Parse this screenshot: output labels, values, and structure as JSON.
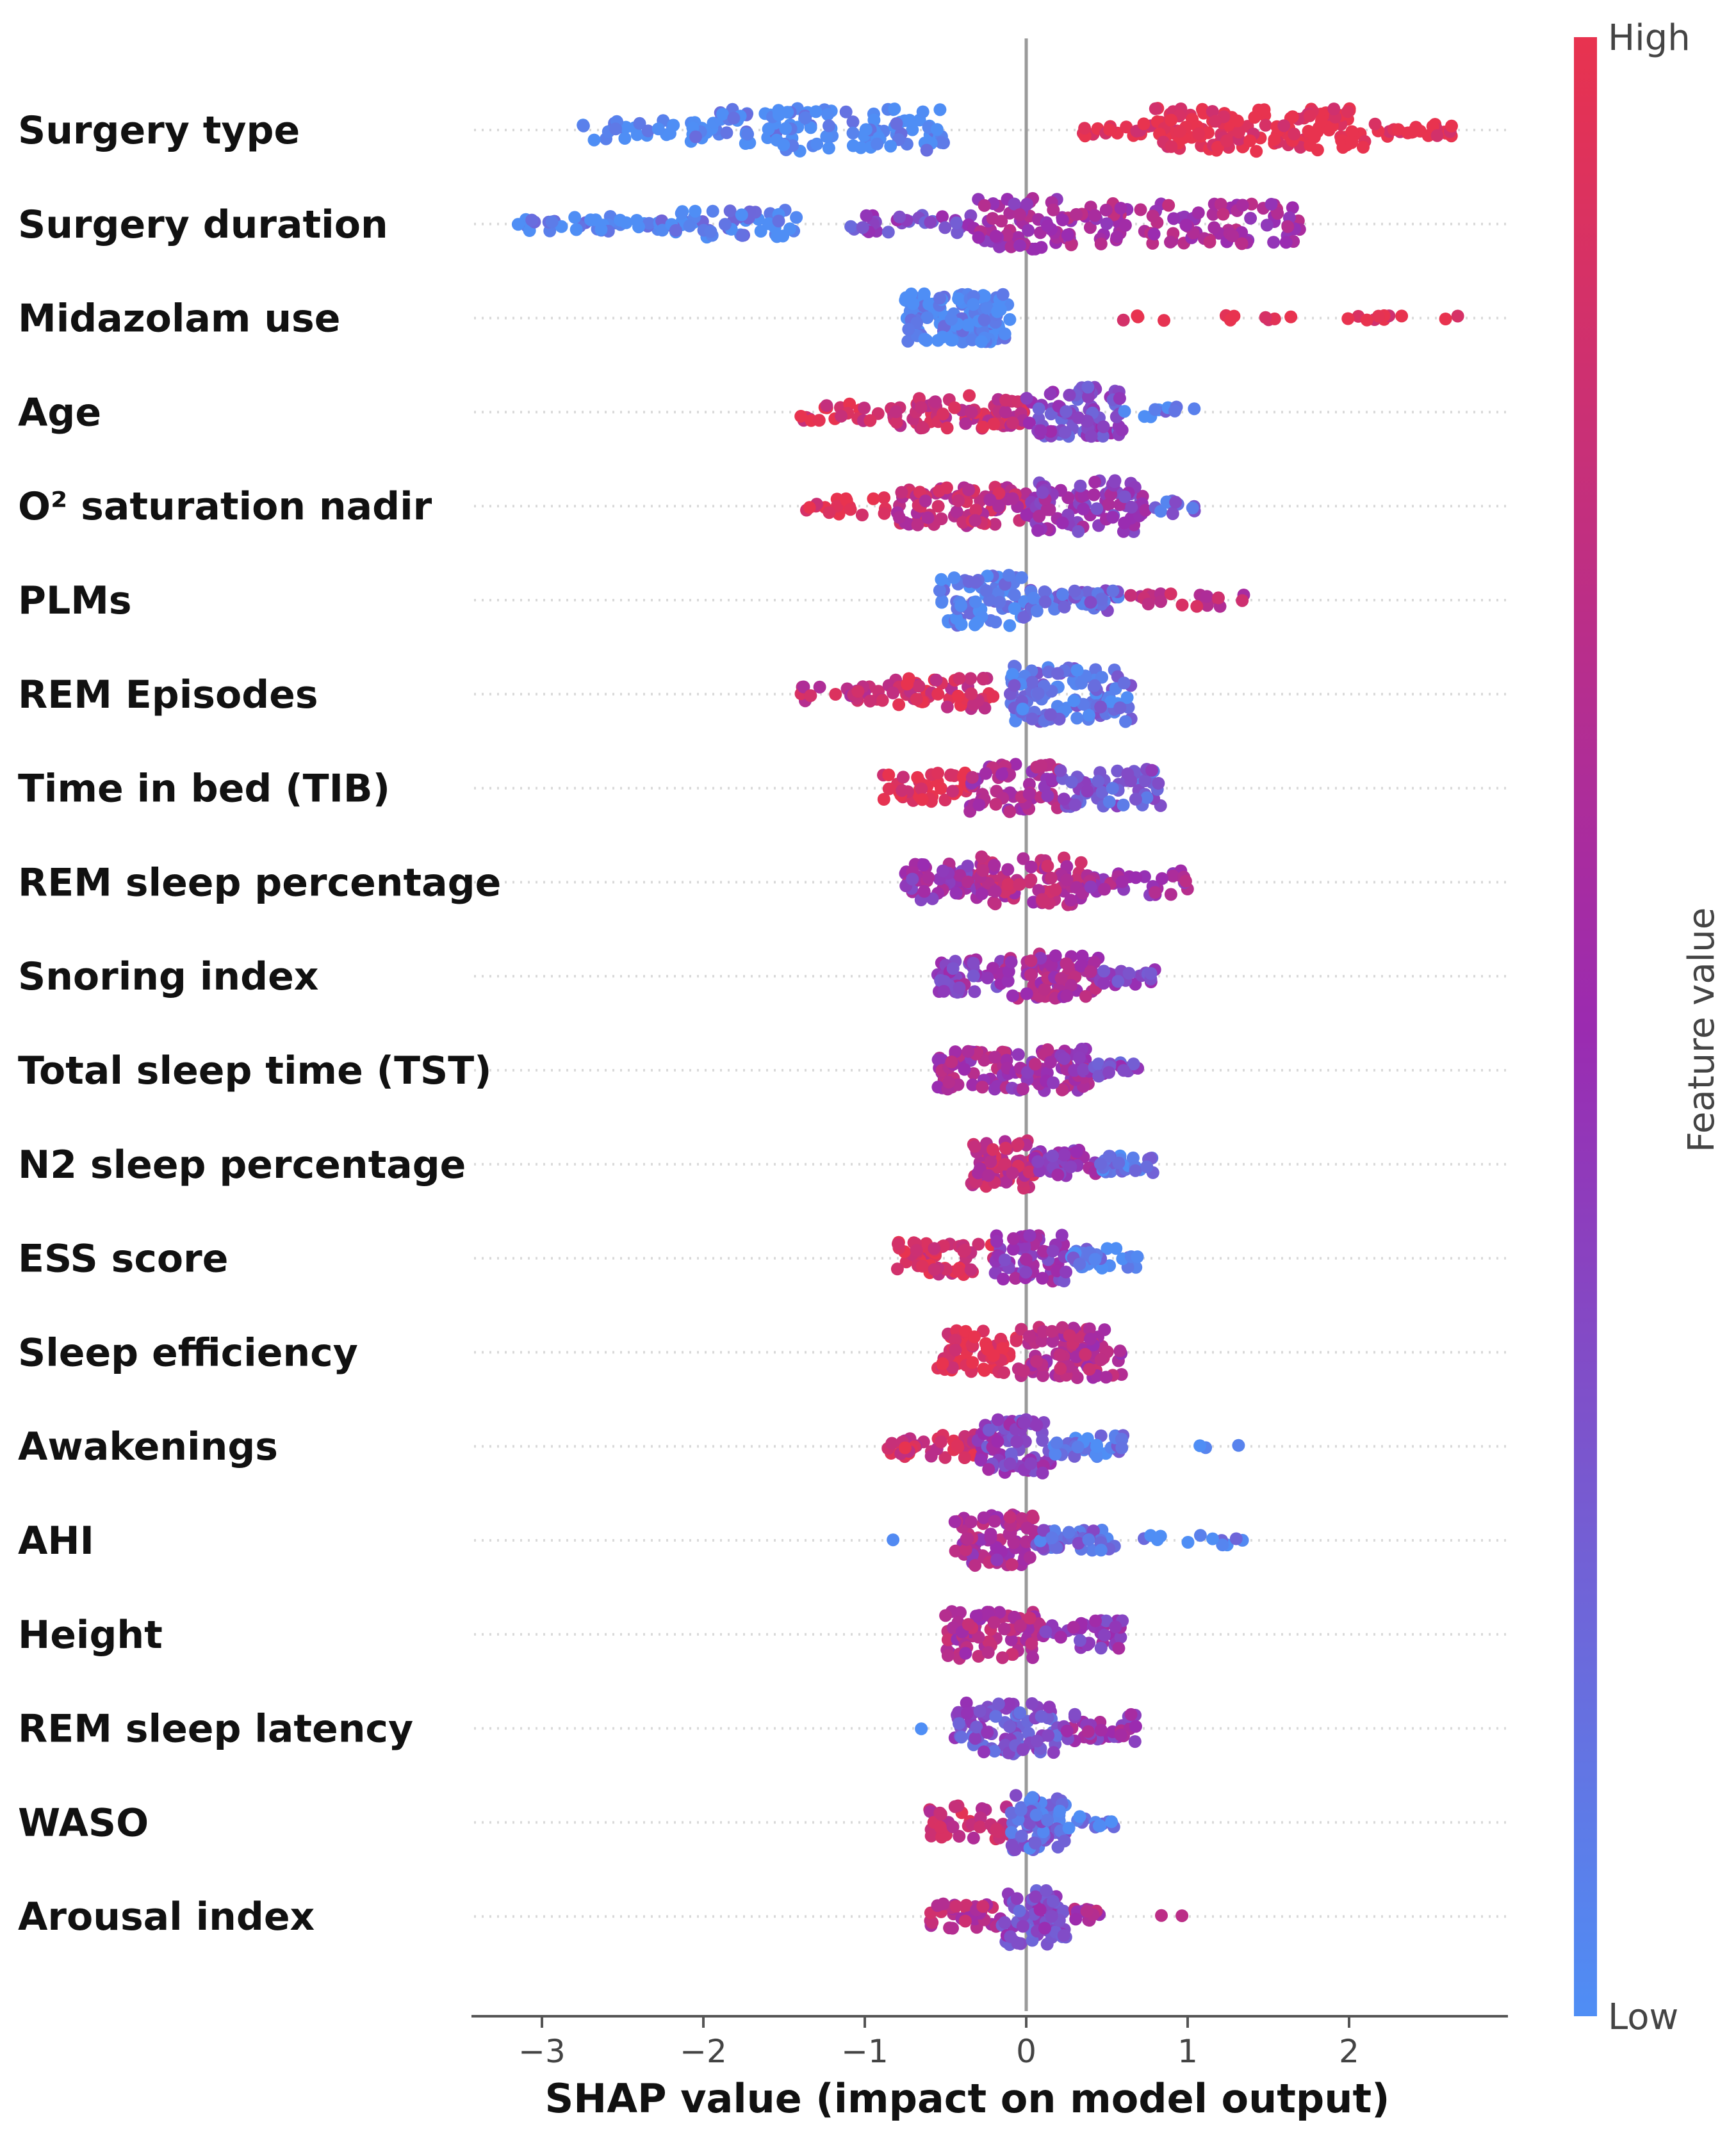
{
  "chart_data": {
    "type": "scatter",
    "subtype": "shap-beeswarm-summary",
    "title": "",
    "xlabel": "SHAP value (impact on model output)",
    "xlim": [
      -3.5,
      3.0
    ],
    "xticks": [
      -3,
      -2,
      -1,
      0,
      1,
      2
    ],
    "xtick_labels": [
      "−3",
      "−2",
      "−1",
      "0",
      "1",
      "2"
    ],
    "colorbar": {
      "label": "Feature value",
      "high_label": "High",
      "low_label": "Low",
      "high_color": "#e8334f",
      "mid_color": "#9b2bb0",
      "low_color": "#4f8ef5"
    },
    "features": [
      {
        "name": "Surgery type",
        "segments": [
          [
            -2.75,
            -1.9,
            0.0,
            40,
            18
          ],
          [
            -1.9,
            -0.5,
            0.0,
            110,
            34
          ],
          [
            0.35,
            0.8,
            1.0,
            18,
            10
          ],
          [
            0.8,
            2.1,
            1.0,
            130,
            34
          ],
          [
            2.1,
            2.65,
            1.0,
            22,
            10
          ]
        ]
      },
      {
        "name": "Surgery duration",
        "segments": [
          [
            -3.15,
            -2.2,
            0.05,
            40,
            12
          ],
          [
            -2.2,
            -1.4,
            0.05,
            55,
            22
          ],
          [
            -1.1,
            -0.3,
            0.35,
            30,
            14
          ],
          [
            -0.3,
            0.4,
            0.55,
            70,
            40
          ],
          [
            0.4,
            1.7,
            0.6,
            90,
            32
          ]
        ]
      },
      {
        "name": "Midazolam use",
        "segments": [
          [
            -0.75,
            -0.1,
            0.0,
            140,
            38
          ],
          [
            0.5,
            2.7,
            1.0,
            22,
            4
          ]
        ]
      },
      {
        "name": "Age",
        "segments": [
          [
            -1.4,
            -0.9,
            0.9,
            20,
            14
          ],
          [
            -0.9,
            0.0,
            0.8,
            75,
            26
          ],
          [
            0.0,
            0.6,
            0.35,
            80,
            40
          ],
          [
            0.6,
            1.05,
            0.1,
            10,
            8
          ]
        ]
      },
      {
        "name": "O² saturation nadir",
        "segments": [
          [
            -1.4,
            -0.8,
            0.95,
            20,
            14
          ],
          [
            -0.8,
            0.0,
            0.75,
            90,
            32
          ],
          [
            0.0,
            0.75,
            0.45,
            90,
            40
          ],
          [
            0.75,
            1.05,
            0.2,
            12,
            12
          ]
        ]
      },
      {
        "name": "PLMs",
        "segments": [
          [
            -0.55,
            0.0,
            0.05,
            70,
            40
          ],
          [
            0.0,
            0.6,
            0.2,
            50,
            18
          ],
          [
            0.6,
            1.35,
            0.75,
            20,
            10
          ]
        ]
      },
      {
        "name": "REM Episodes",
        "segments": [
          [
            -1.4,
            -0.9,
            0.75,
            20,
            12
          ],
          [
            -0.9,
            -0.2,
            0.85,
            55,
            26
          ],
          [
            -0.1,
            0.65,
            0.15,
            110,
            44
          ]
        ]
      },
      {
        "name": "Time in bed (TIB)",
        "segments": [
          [
            -0.9,
            -0.35,
            0.95,
            45,
            24
          ],
          [
            -0.35,
            0.2,
            0.6,
            60,
            40
          ],
          [
            0.2,
            0.85,
            0.25,
            55,
            30
          ]
        ]
      },
      {
        "name": "REM sleep percentage",
        "segments": [
          [
            -0.75,
            -0.3,
            0.5,
            50,
            30
          ],
          [
            -0.3,
            0.35,
            0.7,
            80,
            40
          ],
          [
            0.35,
            1.0,
            0.55,
            35,
            20
          ]
        ]
      },
      {
        "name": "Snoring index",
        "segments": [
          [
            -0.55,
            -0.15,
            0.45,
            45,
            26
          ],
          [
            -0.15,
            0.45,
            0.6,
            80,
            36
          ],
          [
            0.45,
            0.8,
            0.35,
            20,
            14
          ]
        ]
      },
      {
        "name": "Total sleep time (TST)",
        "segments": [
          [
            -0.55,
            -0.1,
            0.6,
            60,
            30
          ],
          [
            -0.1,
            0.4,
            0.55,
            70,
            34
          ],
          [
            0.4,
            0.72,
            0.35,
            18,
            12
          ]
        ]
      },
      {
        "name": "N2 sleep percentage",
        "segments": [
          [
            -0.35,
            0.05,
            0.75,
            70,
            38
          ],
          [
            0.05,
            0.45,
            0.5,
            40,
            22
          ],
          [
            0.45,
            0.8,
            0.1,
            25,
            14
          ]
        ]
      },
      {
        "name": "ESS score",
        "segments": [
          [
            -0.8,
            -0.2,
            0.9,
            55,
            26
          ],
          [
            -0.2,
            0.25,
            0.45,
            60,
            38
          ],
          [
            0.25,
            0.7,
            0.1,
            30,
            16
          ]
        ]
      },
      {
        "name": "Sleep efficiency",
        "segments": [
          [
            -0.55,
            -0.05,
            0.95,
            60,
            34
          ],
          [
            -0.05,
            0.6,
            0.65,
            85,
            40
          ]
        ]
      },
      {
        "name": "Awakenings",
        "segments": [
          [
            -0.9,
            -0.3,
            0.85,
            40,
            18
          ],
          [
            -0.3,
            0.15,
            0.4,
            75,
            42
          ],
          [
            0.15,
            0.6,
            0.1,
            35,
            18
          ],
          [
            0.8,
            1.35,
            0.05,
            3,
            4
          ]
        ]
      },
      {
        "name": "AHI",
        "segments": [
          [
            -0.85,
            -0.8,
            0.1,
            1,
            2
          ],
          [
            -0.45,
            0.05,
            0.6,
            75,
            40
          ],
          [
            0.05,
            0.55,
            0.2,
            40,
            16
          ],
          [
            0.7,
            1.35,
            0.05,
            12,
            8
          ]
        ]
      },
      {
        "name": "Height",
        "segments": [
          [
            -0.5,
            0.1,
            0.65,
            75,
            38
          ],
          [
            0.1,
            0.6,
            0.45,
            40,
            22
          ]
        ]
      },
      {
        "name": "REM sleep latency",
        "segments": [
          [
            -0.7,
            -0.6,
            0.1,
            1,
            2
          ],
          [
            -0.45,
            0.2,
            0.3,
            85,
            40
          ],
          [
            0.2,
            0.75,
            0.5,
            35,
            22
          ]
        ]
      },
      {
        "name": "WASO",
        "segments": [
          [
            -0.6,
            -0.1,
            0.8,
            45,
            26
          ],
          [
            -0.1,
            0.25,
            0.2,
            70,
            44
          ],
          [
            0.25,
            0.55,
            0.05,
            15,
            10
          ]
        ]
      },
      {
        "name": "Arousal index",
        "segments": [
          [
            -0.6,
            -0.15,
            0.7,
            35,
            20
          ],
          [
            -0.15,
            0.25,
            0.35,
            75,
            44
          ],
          [
            0.25,
            0.5,
            0.6,
            14,
            12
          ],
          [
            0.8,
            1.2,
            0.75,
            2,
            4
          ]
        ]
      }
    ]
  }
}
